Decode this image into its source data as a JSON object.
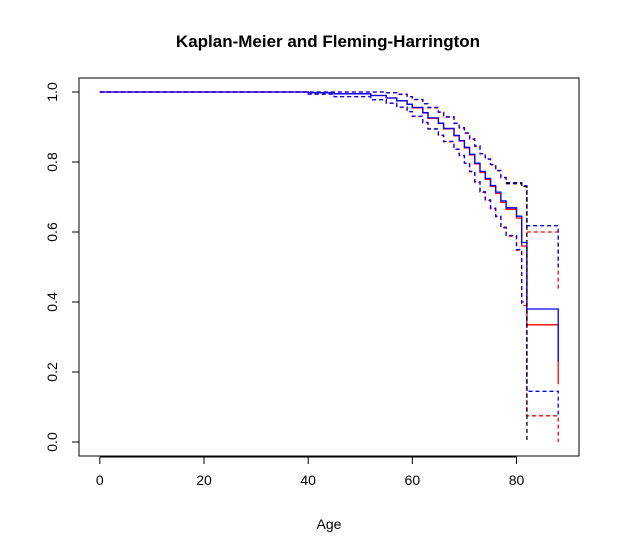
{
  "chart_data": {
    "type": "line",
    "title": "Kaplan-Meier and Fleming-Harrington",
    "xlabel": "Age",
    "ylabel": "",
    "xlim": [
      -4,
      92
    ],
    "ylim": [
      -0.04,
      1.04
    ],
    "x_ticks": [
      0,
      20,
      40,
      60,
      80
    ],
    "x_tick_labels": [
      "0",
      "20",
      "40",
      "60",
      "80"
    ],
    "y_ticks": [
      0.0,
      0.2,
      0.4,
      0.6,
      0.8,
      1.0
    ],
    "y_tick_labels": [
      "0.0",
      "0.2",
      "0.4",
      "0.6",
      "0.8",
      "1.0"
    ],
    "grid": false,
    "legend": "none",
    "series": [
      {
        "kind": "kaplan-meier estimate",
        "color": "#ff0000",
        "dash": "solid",
        "x": [
          0,
          40,
          45,
          52,
          55,
          57,
          59,
          60,
          62,
          63,
          65,
          66,
          68,
          69,
          70,
          71,
          72,
          73,
          74,
          75,
          76,
          77,
          78,
          80,
          81,
          82,
          88
        ],
        "y": [
          1.0,
          0.998,
          0.995,
          0.99,
          0.983,
          0.975,
          0.965,
          0.955,
          0.94,
          0.925,
          0.91,
          0.895,
          0.875,
          0.86,
          0.84,
          0.82,
          0.795,
          0.77,
          0.75,
          0.73,
          0.71,
          0.685,
          0.665,
          0.64,
          0.56,
          0.335,
          0.165
        ]
      },
      {
        "kind": "fleming-harrington estimate",
        "color": "#0000ff",
        "dash": "solid",
        "x": [
          0,
          40,
          45,
          52,
          55,
          57,
          59,
          60,
          62,
          63,
          65,
          66,
          68,
          69,
          70,
          71,
          72,
          73,
          74,
          75,
          76,
          77,
          78,
          80,
          81,
          82,
          88
        ],
        "y": [
          1.0,
          0.998,
          0.995,
          0.99,
          0.983,
          0.975,
          0.965,
          0.956,
          0.941,
          0.926,
          0.911,
          0.896,
          0.876,
          0.861,
          0.842,
          0.822,
          0.797,
          0.773,
          0.753,
          0.733,
          0.714,
          0.689,
          0.669,
          0.645,
          0.57,
          0.38,
          0.23
        ]
      },
      {
        "kind": "kaplan-meier upper confidence bound",
        "color": "#ff0000",
        "dash": "dashed",
        "x": [
          0,
          40,
          45,
          52,
          55,
          57,
          59,
          60,
          62,
          63,
          65,
          66,
          68,
          69,
          70,
          71,
          72,
          73,
          74,
          75,
          76,
          77,
          78,
          80,
          81,
          82,
          88
        ],
        "y": [
          1.0,
          1.0,
          1.0,
          1.0,
          0.998,
          0.993,
          0.986,
          0.978,
          0.966,
          0.955,
          0.942,
          0.928,
          0.91,
          0.897,
          0.882,
          0.865,
          0.845,
          0.823,
          0.808,
          0.792,
          0.775,
          0.755,
          0.74,
          0.74,
          0.73,
          0.6,
          0.43
        ]
      },
      {
        "kind": "kaplan-meier lower confidence bound",
        "color": "#ff0000",
        "dash": "dashed",
        "x": [
          0,
          40,
          45,
          52,
          55,
          57,
          59,
          60,
          62,
          63,
          65,
          66,
          68,
          69,
          70,
          71,
          72,
          73,
          74,
          75,
          76,
          77,
          78,
          80,
          81,
          82,
          88
        ],
        "y": [
          1.0,
          0.994,
          0.987,
          0.978,
          0.968,
          0.957,
          0.944,
          0.93,
          0.912,
          0.894,
          0.876,
          0.858,
          0.836,
          0.818,
          0.796,
          0.772,
          0.742,
          0.713,
          0.69,
          0.666,
          0.643,
          0.612,
          0.588,
          0.548,
          0.39,
          0.075,
          0.0
        ]
      },
      {
        "kind": "fleming-harrington upper confidence bound",
        "color": "#0000ff",
        "dash": "dashed",
        "x": [
          0,
          40,
          45,
          52,
          55,
          57,
          59,
          60,
          62,
          63,
          65,
          66,
          68,
          69,
          70,
          71,
          72,
          73,
          74,
          75,
          76,
          77,
          78,
          80,
          81,
          82,
          88
        ],
        "y": [
          1.0,
          1.0,
          1.0,
          1.0,
          0.998,
          0.994,
          0.987,
          0.979,
          0.967,
          0.956,
          0.943,
          0.929,
          0.911,
          0.898,
          0.883,
          0.866,
          0.846,
          0.824,
          0.809,
          0.793,
          0.776,
          0.756,
          0.741,
          0.741,
          0.732,
          0.618,
          0.5
        ]
      },
      {
        "kind": "fleming-harrington lower confidence bound",
        "color": "#0000ff",
        "dash": "dashed",
        "x": [
          0,
          40,
          45,
          52,
          55,
          57,
          59,
          60,
          62,
          63,
          65,
          66,
          68,
          69,
          70,
          71,
          72,
          73,
          74,
          75,
          76,
          77,
          78,
          80,
          81,
          82,
          88
        ],
        "y": [
          1.0,
          0.994,
          0.987,
          0.978,
          0.968,
          0.957,
          0.944,
          0.931,
          0.913,
          0.895,
          0.877,
          0.859,
          0.837,
          0.819,
          0.797,
          0.773,
          0.744,
          0.715,
          0.692,
          0.668,
          0.645,
          0.614,
          0.59,
          0.55,
          0.4,
          0.145,
          0.07
        ]
      },
      {
        "kind": "overlapping confidence bound",
        "color": "#000000",
        "dash": "dashed",
        "x": [
          78,
          81,
          82
        ],
        "y": [
          0.738,
          0.73,
          0.0
        ]
      }
    ]
  }
}
